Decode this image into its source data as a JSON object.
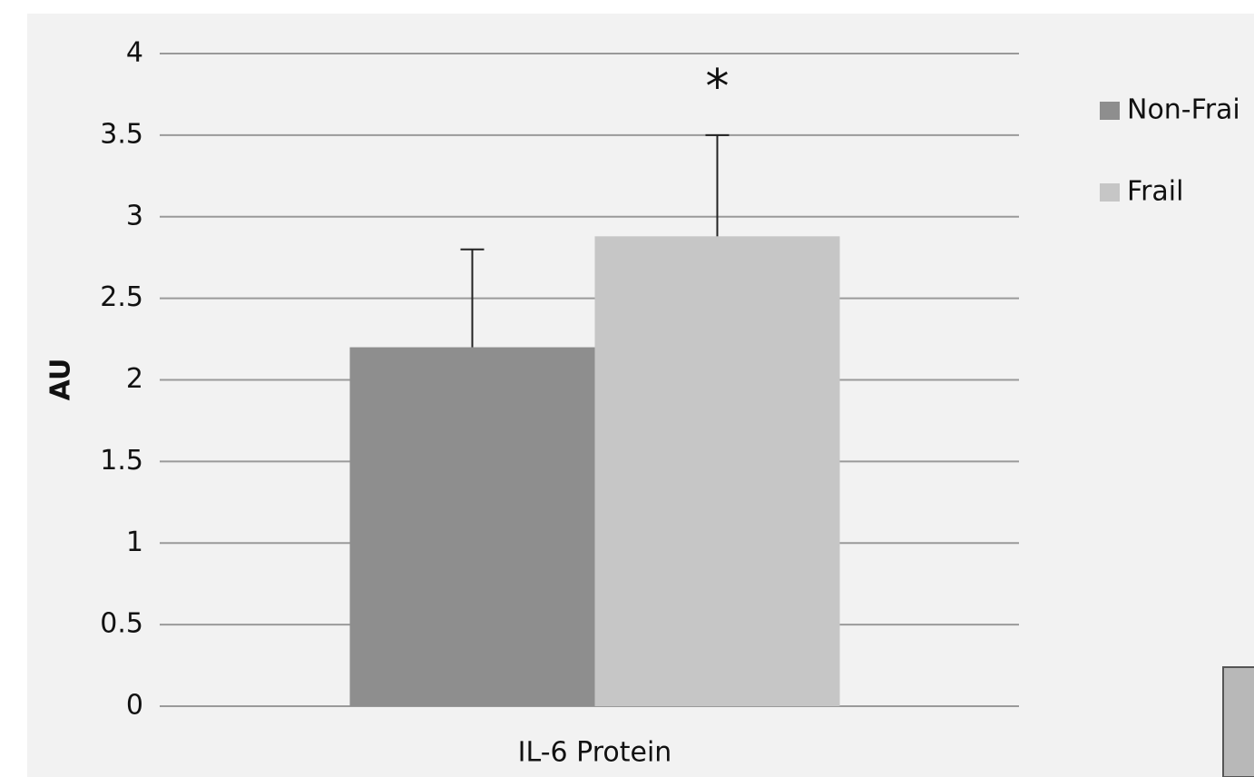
{
  "chart_data": {
    "type": "bar",
    "categories": [
      "IL-6 Protein"
    ],
    "y_label": "AU",
    "series": [
      {
        "name": "Non-Frai",
        "color": "#8e8e8e",
        "values": [
          2.2
        ],
        "errors": [
          0.6
        ]
      },
      {
        "name": "Frail",
        "color": "#c6c6c6",
        "values": [
          2.88
        ],
        "errors": [
          0.62
        ]
      }
    ],
    "annotation": "*",
    "ylim": [
      0,
      4
    ],
    "yticks": [
      0,
      0.5,
      1,
      1.5,
      2,
      2.5,
      3,
      3.5,
      4
    ],
    "grid": true
  }
}
